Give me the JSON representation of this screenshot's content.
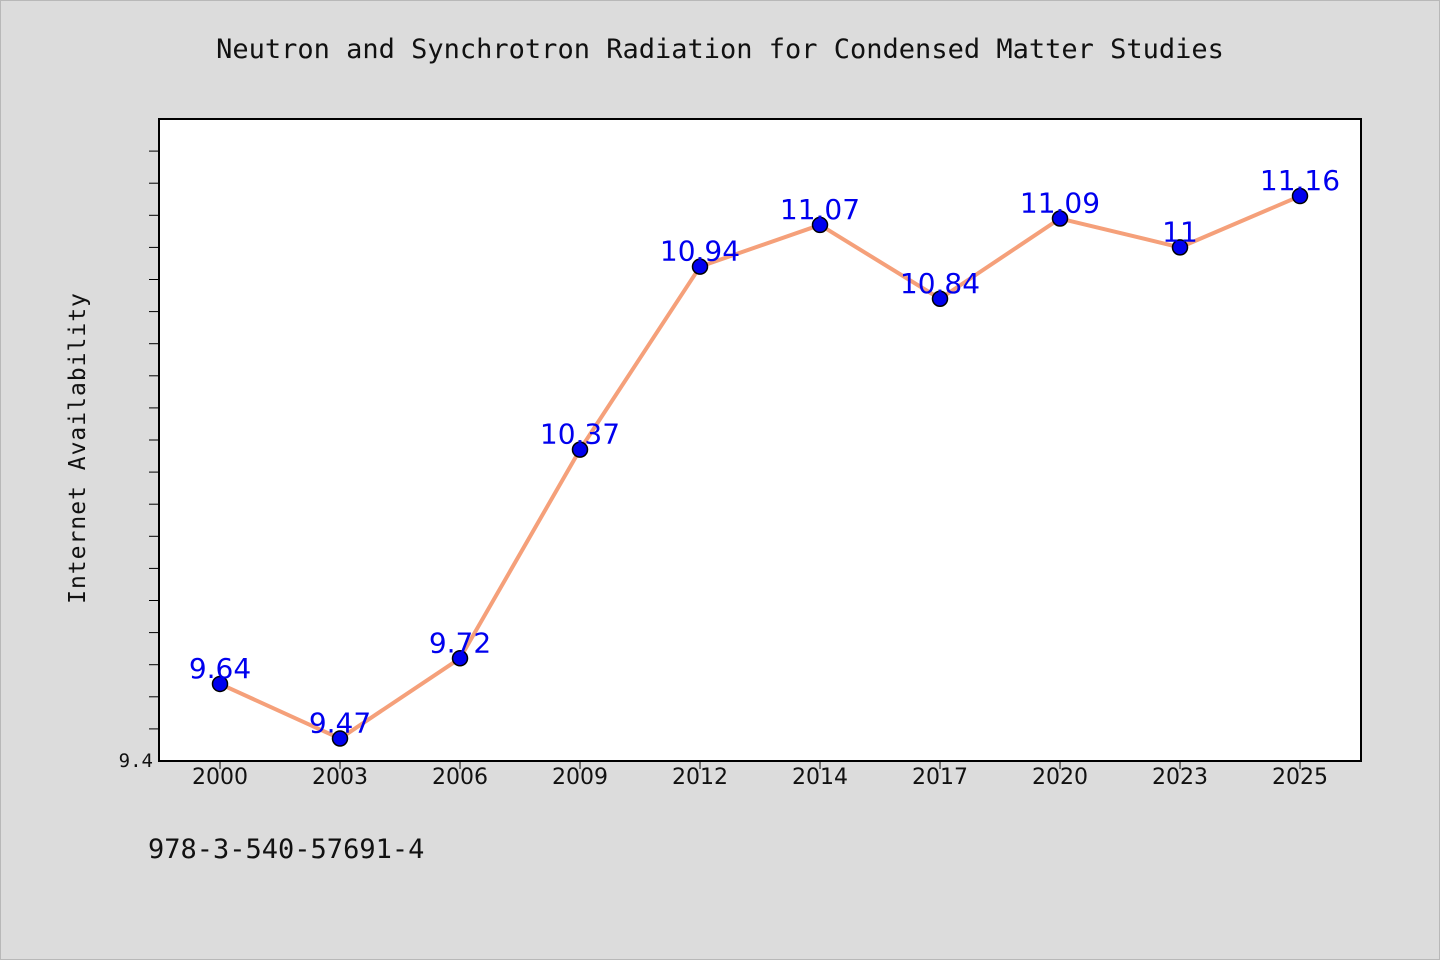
{
  "chart_data": {
    "type": "line",
    "title": "Neutron and Synchrotron Radiation for Condensed Matter Studies",
    "xlabel": "",
    "ylabel": "Internet Availability",
    "categories": [
      "2000",
      "2003",
      "2006",
      "2009",
      "2012",
      "2014",
      "2017",
      "2020",
      "2023",
      "2025"
    ],
    "series": [
      {
        "values": [
          9.64,
          9.47,
          9.72,
          10.37,
          10.94,
          11.07,
          10.84,
          11.09,
          11.0,
          11.16
        ],
        "labels": [
          "9.64",
          "9.47",
          "9.72",
          "10.37",
          "10.94",
          "11.07",
          "10.84",
          "11.09",
          "11",
          "11.16"
        ]
      }
    ],
    "ylim": [
      9.4,
      11.4
    ],
    "ytick_labels": [
      "9.4"
    ],
    "grid": false,
    "colors": {
      "line": "#f5a07a",
      "marker": "#0000ee",
      "data_label": "#0000ee",
      "plot_bg": "#ffffff",
      "page_bg": "#dcdcdc"
    }
  },
  "footer_note": "978-3-540-57691-4"
}
